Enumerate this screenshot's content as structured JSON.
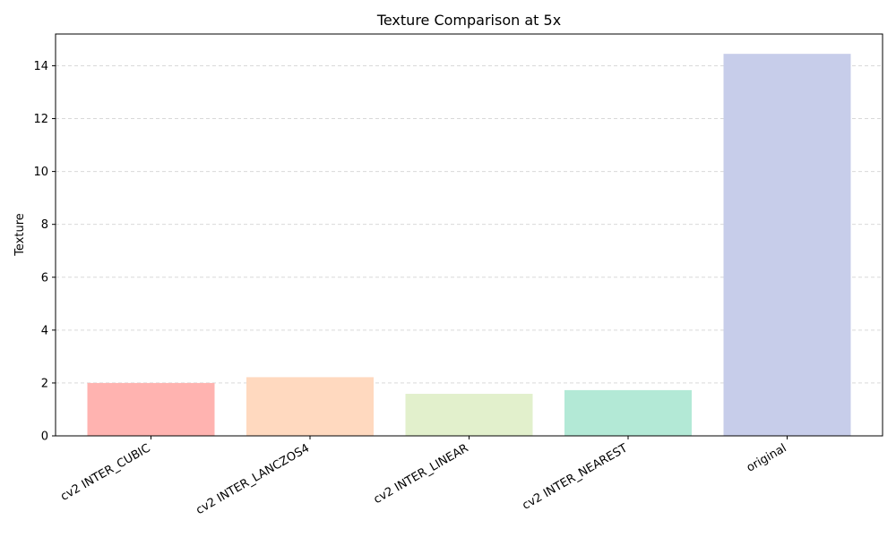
{
  "chart_data": {
    "type": "bar",
    "title": "Texture Comparison at 5x",
    "xlabel": "",
    "ylabel": "Texture",
    "categories": [
      "cv2 INTER_CUBIC",
      "cv2 INTER_LANCZOS4",
      "cv2 INTER_LINEAR",
      "cv2 INTER_NEAREST",
      "original"
    ],
    "values": [
      2.0,
      2.22,
      1.59,
      1.73,
      14.45
    ],
    "colors": [
      "#ffb3b0",
      "#ffd9bf",
      "#e2f0cc",
      "#b3e9d6",
      "#c7cdea"
    ],
    "ylim": [
      0,
      15.2
    ],
    "yticks": [
      0,
      2,
      4,
      6,
      8,
      10,
      12,
      14
    ],
    "grid": "y-dashed",
    "x_tick_rotation": 30
  }
}
